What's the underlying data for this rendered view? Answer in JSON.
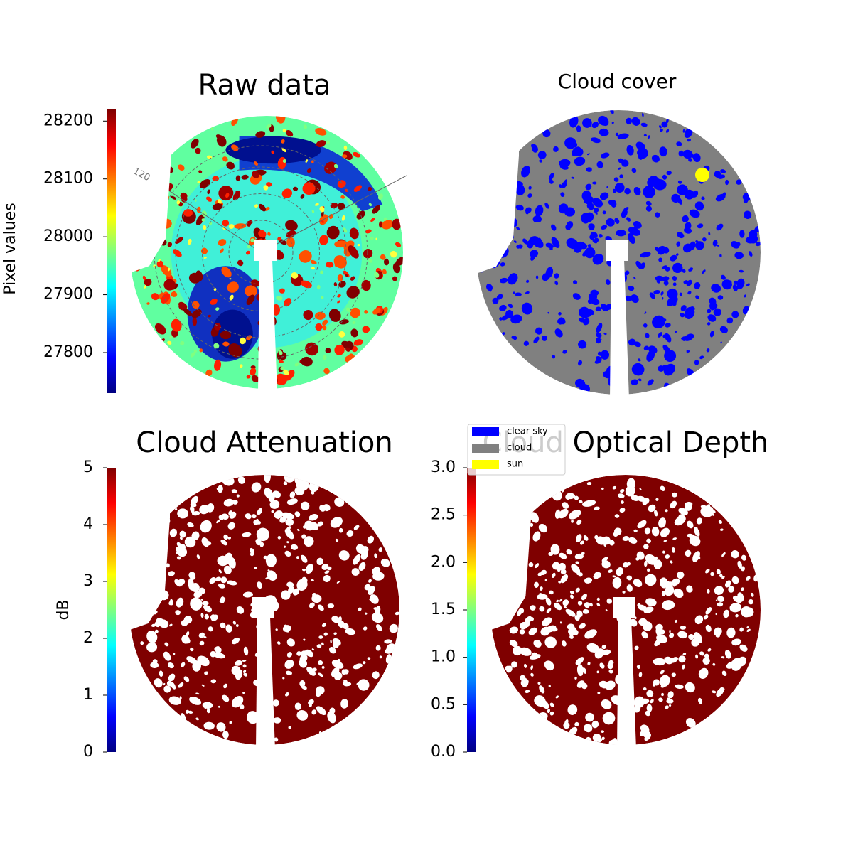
{
  "chart_data": [
    {
      "type": "image",
      "title": "Raw data",
      "annotations": [
        "120"
      ],
      "colorbar": {
        "label": "Pixel values",
        "colormap": "jet",
        "lim": [
          27730,
          28220
        ],
        "ticks": [
          27800,
          27900,
          28000,
          28100,
          28200
        ]
      }
    },
    {
      "type": "classification",
      "title": "Cloud cover",
      "series": [
        {
          "name": "clear sky",
          "color": "#0000ff"
        },
        {
          "name": "cloud",
          "color": "#808080"
        },
        {
          "name": "sun",
          "color": "#ffff00"
        }
      ]
    },
    {
      "type": "image",
      "title": "Cloud Attenuation",
      "colorbar": {
        "label": "dB",
        "colormap": "jet",
        "lim": [
          0,
          5
        ],
        "ticks": [
          0,
          1,
          2,
          3,
          4,
          5
        ]
      }
    },
    {
      "type": "image",
      "title": "Cloud Optical Depth",
      "colorbar": {
        "colormap": "jet",
        "lim": [
          0,
          3
        ],
        "ticks": [
          {
            "value": 0,
            "label": "0.0"
          },
          0.5,
          {
            "value": 1,
            "label": "1.0"
          },
          1.5,
          {
            "value": 2,
            "label": "2.0"
          },
          2.5,
          {
            "value": 3,
            "label": "3.0"
          }
        ]
      }
    }
  ]
}
